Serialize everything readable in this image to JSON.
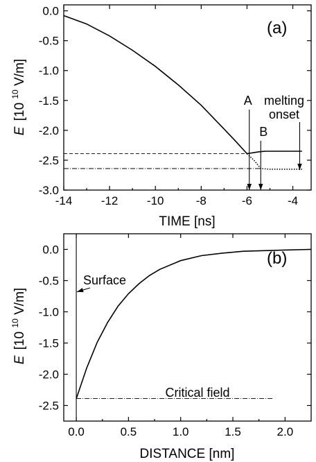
{
  "chart_data": [
    {
      "type": "line",
      "panel_label": "(a)",
      "xlabel": "TIME [ns]",
      "ylabel_main": "E",
      "ylabel_unit": "[10",
      "ylabel_exp": "10",
      "ylabel_tail": " V/m]",
      "xlim": [
        -14,
        -3.2
      ],
      "ylim": [
        -3.0,
        0.1
      ],
      "xticks": [
        -14,
        -12,
        -10,
        -8,
        -6,
        -4
      ],
      "xtick_labels": [
        "-14",
        "-12",
        "-10",
        "-8",
        "-6",
        "-4"
      ],
      "yticks": [
        0.0,
        -0.5,
        -1.0,
        -1.5,
        -2.0,
        -2.5,
        -3.0
      ],
      "ytick_labels": [
        "0.0",
        "-0.5",
        "-1.0",
        "-1.5",
        "-2.0",
        "-2.5",
        "-3.0"
      ],
      "series": [
        {
          "style": "solid",
          "x": [
            -14,
            -13,
            -12,
            -11,
            -10,
            -9,
            -8,
            -7,
            -6.5,
            -6.0,
            -5.5,
            -5.2,
            -5.0,
            -4.5,
            -4.0,
            -3.6
          ],
          "y": [
            -0.08,
            -0.22,
            -0.42,
            -0.66,
            -0.93,
            -1.24,
            -1.58,
            -1.98,
            -2.18,
            -2.39,
            -2.36,
            -2.35,
            -2.35,
            -2.35,
            -2.35,
            -2.35
          ]
        },
        {
          "style": "dotted",
          "x": [
            -6.0,
            -5.7,
            -5.4,
            -5.0,
            -4.5,
            -4.0,
            -3.6
          ],
          "y": [
            -2.39,
            -2.5,
            -2.64,
            -2.65,
            -2.65,
            -2.65,
            -2.65
          ]
        }
      ],
      "reference_lines": [
        {
          "style": "dashed",
          "y": -2.39,
          "x_from": -14,
          "x_to": -6.0
        },
        {
          "style": "dash-dot",
          "y": -2.64,
          "x_from": -14,
          "x_to": -5.4
        }
      ],
      "markers": [
        {
          "label": "A",
          "x": -5.9
        },
        {
          "label": "B",
          "x": -5.4
        },
        {
          "label": "melting\nonset",
          "x": -3.7
        }
      ]
    },
    {
      "type": "line",
      "panel_label": "(b)",
      "xlabel": "DISTANCE [nm]",
      "ylabel_main": "E",
      "ylabel_unit": "[10",
      "ylabel_exp": "10",
      "ylabel_tail": " V/m]",
      "xlim": [
        -0.12,
        2.25
      ],
      "ylim": [
        -2.75,
        0.25
      ],
      "xticks": [
        0.0,
        0.5,
        1.0,
        1.5,
        2.0
      ],
      "xtick_labels": [
        "0.0",
        "0.5",
        "1.0",
        "1.5",
        "2.0"
      ],
      "yticks": [
        0.0,
        -0.5,
        -1.0,
        -1.5,
        -2.0,
        -2.5
      ],
      "ytick_labels": [
        "0.0",
        "-0.5",
        "-1.0",
        "-1.5",
        "-2.0",
        "-2.5"
      ],
      "series": [
        {
          "style": "solid",
          "x": [
            0.0,
            0.1,
            0.2,
            0.3,
            0.4,
            0.5,
            0.6,
            0.7,
            0.8,
            1.0,
            1.2,
            1.4,
            1.6,
            1.8,
            2.0,
            2.25
          ],
          "y": [
            -2.39,
            -1.9,
            -1.49,
            -1.17,
            -0.91,
            -0.71,
            -0.55,
            -0.42,
            -0.32,
            -0.18,
            -0.1,
            -0.06,
            -0.03,
            -0.02,
            -0.01,
            0.0
          ]
        }
      ],
      "reference_lines": [
        {
          "style": "dash-dot",
          "y": -2.39,
          "x_from": 0.0,
          "x_to": 1.88
        }
      ],
      "annotations": [
        {
          "text": "Surface",
          "arrow_to_x": 0.0,
          "arrow_to_y": -0.68
        },
        {
          "text": "Critical field"
        }
      ]
    }
  ]
}
